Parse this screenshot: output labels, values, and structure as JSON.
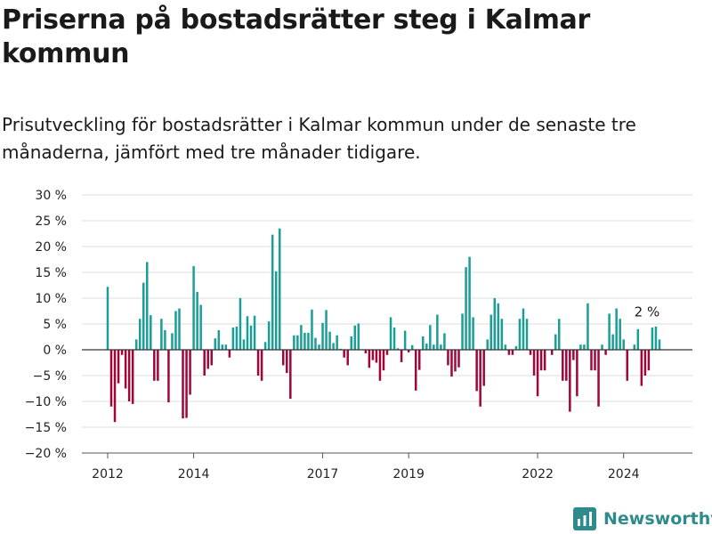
{
  "title": "Priserna på bostadsrätter steg i Kalmar kommun",
  "subtitle": "Prisutveckling för bostadsrätter i Kalmar kommun under de senaste tre månaderna, jämfört med tre månader tidigare.",
  "brand": {
    "name": "Newsworthy",
    "color": "#2e8b8b",
    "icon": "newsworthy-logo-icon"
  },
  "colors": {
    "positive": "#1a9e96",
    "negative": "#a0063a",
    "grid": "#dddddd",
    "zero_line": "#333333"
  },
  "chart_data": {
    "type": "bar",
    "ylim": [
      -20,
      30
    ],
    "y_ticks": [
      30,
      25,
      20,
      15,
      10,
      5,
      0,
      -5,
      -10,
      -15,
      -20
    ],
    "y_tick_labels": [
      "30 %",
      "25 %",
      "20 %",
      "15 %",
      "10 %",
      "5 %",
      "0 %",
      "−5 %",
      "−10 %",
      "−15 %",
      "−20 %"
    ],
    "x_ticks": [
      "2012",
      "2014",
      "2017",
      "2019",
      "2022",
      "2024"
    ],
    "x_tick_positions": [
      2012,
      2014,
      2017,
      2019,
      2022,
      2024
    ],
    "xlim": [
      2011.4,
      2025.6
    ],
    "start": {
      "year": 2012,
      "month": 1
    },
    "annotation": {
      "text": "2 %"
    },
    "values": [
      12.2,
      -11,
      -14,
      -6.5,
      -1,
      -7.5,
      -10,
      -10.5,
      2,
      6,
      13,
      17,
      6.7,
      -6,
      -6,
      6,
      3.8,
      -10.2,
      3.2,
      7.5,
      8,
      -13.3,
      -13.2,
      -8.7,
      16.2,
      11.2,
      8.7,
      -5,
      -3.7,
      -3,
      2.2,
      3.8,
      1,
      1,
      -1.5,
      4.3,
      4.5,
      10,
      2,
      6.5,
      4.7,
      6.6,
      -5,
      -6,
      1.5,
      5.5,
      22.3,
      15.2,
      23.5,
      -3,
      -4.5,
      -9.5,
      2.8,
      2.8,
      4.8,
      3.3,
      3.3,
      7.8,
      2.3,
      1,
      5.2,
      7.7,
      3.5,
      1.3,
      2.8,
      0.2,
      -1.5,
      -3,
      2.6,
      4.7,
      5.1,
      0.1,
      -0.7,
      -3.5,
      -2,
      -2.5,
      -6,
      -4,
      -1,
      6.3,
      4.3,
      0.3,
      -2.4,
      3.7,
      -0.5,
      0.9,
      -7.9,
      -3.9,
      2.6,
      1.2,
      4.8,
      1,
      6.8,
      1,
      3.2,
      -3,
      -5.2,
      -4.2,
      -3.4,
      7,
      16,
      18,
      6.3,
      -8,
      -11,
      -7,
      2,
      6.8,
      10,
      9,
      6,
      1,
      -1,
      -1,
      0.7,
      6,
      8,
      6,
      -1,
      -5,
      -9,
      -4,
      -4,
      0,
      -1,
      3,
      6,
      -6,
      -6,
      -12,
      -2,
      -9,
      1,
      1,
      9,
      -4,
      -4,
      -11,
      1,
      -1,
      7,
      3,
      8,
      6,
      2,
      -6,
      0,
      1,
      4,
      -7,
      -5,
      -4,
      4.3,
      4.5,
      2
    ]
  }
}
